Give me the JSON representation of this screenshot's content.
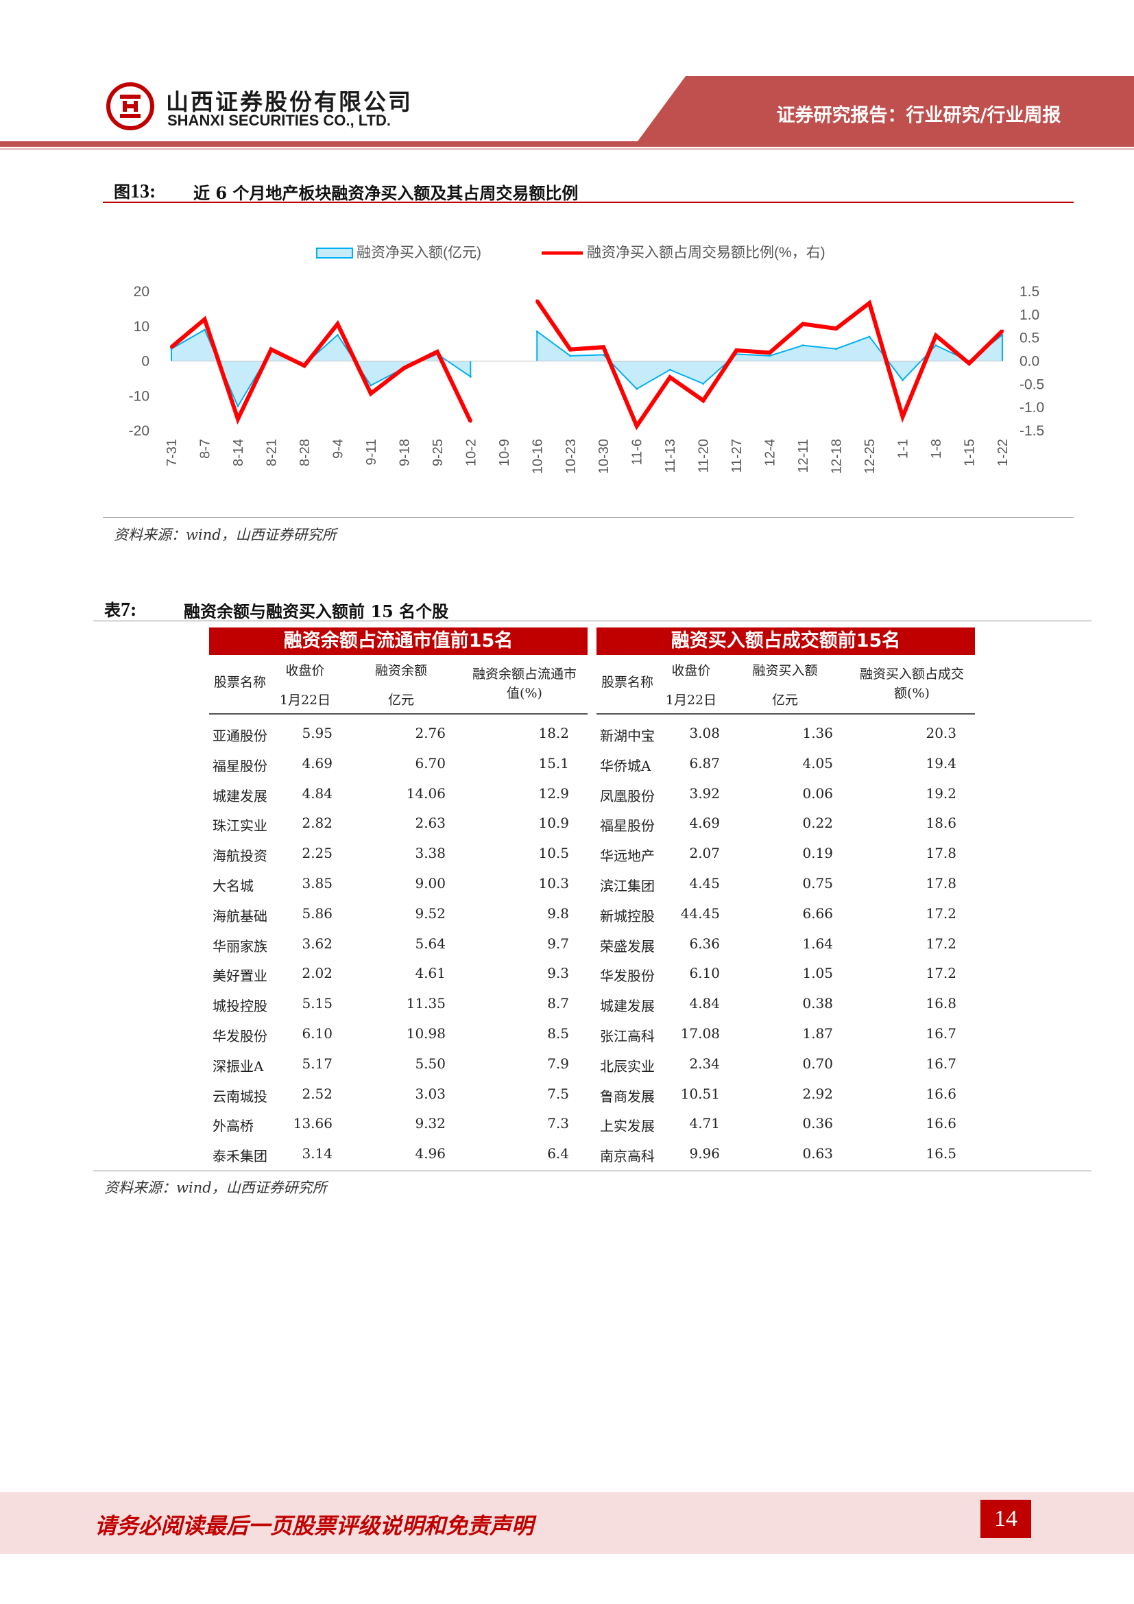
{
  "header": {
    "company_cn": "山西证券股份有限公司",
    "company_en": "SHANXI SECURITIES CO., LTD.",
    "report_type": "证券研究报告：行业研究/行业周报",
    "brand_color": "#c0504d"
  },
  "figure": {
    "caption_label": "图",
    "caption_num": "13:",
    "title": "近 6 个月地产板块融资净买入额及其占周交易额比例",
    "source": "资料来源：wind，山西证券研究所"
  },
  "chart_data": {
    "type": "area+line",
    "legend_position": "top",
    "grid": false,
    "categories": [
      "7-31",
      "8-7",
      "8-14",
      "8-21",
      "8-28",
      "9-4",
      "9-11",
      "9-18",
      "9-25",
      "10-2",
      "10-9",
      "10-16",
      "10-23",
      "10-30",
      "11-6",
      "11-13",
      "11-20",
      "11-27",
      "12-4",
      "12-11",
      "12-18",
      "12-25",
      "1-1",
      "1-8",
      "1-15",
      "1-22"
    ],
    "left_axis": {
      "ticks": [
        "20",
        "10",
        "0",
        "-10",
        "-20"
      ],
      "ylim": [
        -20,
        20
      ]
    },
    "right_axis": {
      "ticks": [
        "1.5",
        "1.0",
        "0.5",
        "0.0",
        "-0.5",
        "-1.0",
        "-1.5"
      ],
      "ylim": [
        -1.5,
        1.5
      ]
    },
    "series": [
      {
        "name": "融资净买入额(亿元)",
        "type": "area",
        "axis": "left",
        "color": "#00b0f0",
        "fill": "#c6ecfb",
        "values": [
          3.5,
          9,
          -13,
          3,
          -1,
          7.5,
          -7,
          -2,
          2,
          -4.5,
          null,
          8.5,
          1.5,
          1.8,
          -8,
          -2.5,
          -6.5,
          2,
          1.5,
          4.5,
          3.5,
          7,
          -5.5,
          4.5,
          0,
          7.5
        ]
      },
      {
        "name": "融资净买入额占周交易额比例(%，右)",
        "type": "line",
        "axis": "right",
        "color": "#ff0000",
        "values": [
          0.3,
          0.9,
          -1.25,
          0.25,
          -0.1,
          0.8,
          -0.7,
          -0.15,
          0.2,
          -1.3,
          null,
          1.3,
          0.25,
          0.3,
          -1.4,
          -0.35,
          -0.85,
          0.23,
          0.18,
          0.8,
          0.7,
          1.25,
          -1.2,
          0.55,
          -0.05,
          0.65
        ]
      }
    ]
  },
  "table": {
    "caption_label": "表",
    "caption_num": "7:",
    "title": "融资余额与融资买入额前 15 名个股",
    "left_title": "融资余额占流通市值前15名",
    "right_title": "融资买入额占成交额前15名",
    "left_headers": {
      "name": "股票名称",
      "price": "收盘价",
      "price_sub": "1月22日",
      "balance": "融资余额",
      "balance_sub": "亿元",
      "ratio": "融资余额占流通市",
      "ratio_sub": "值(%)"
    },
    "right_headers": {
      "name": "股票名称",
      "price": "收盘价",
      "price_sub": "1月22日",
      "buy": "融资买入额",
      "buy_sub": "亿元",
      "ratio": "融资买入额占成交",
      "ratio_sub": "额(%)"
    },
    "left_rows": [
      [
        "亚通股份",
        "5.95",
        "2.76",
        "18.2"
      ],
      [
        "福星股份",
        "4.69",
        "6.70",
        "15.1"
      ],
      [
        "城建发展",
        "4.84",
        "14.06",
        "12.9"
      ],
      [
        "珠江实业",
        "2.82",
        "2.63",
        "10.9"
      ],
      [
        "海航投资",
        "2.25",
        "3.38",
        "10.5"
      ],
      [
        "大名城",
        "3.85",
        "9.00",
        "10.3"
      ],
      [
        "海航基础",
        "5.86",
        "9.52",
        "9.8"
      ],
      [
        "华丽家族",
        "3.62",
        "5.64",
        "9.7"
      ],
      [
        "美好置业",
        "2.02",
        "4.61",
        "9.3"
      ],
      [
        "城投控股",
        "5.15",
        "11.35",
        "8.7"
      ],
      [
        "华发股份",
        "6.10",
        "10.98",
        "8.5"
      ],
      [
        "深振业A",
        "5.17",
        "5.50",
        "7.9"
      ],
      [
        "云南城投",
        "2.52",
        "3.03",
        "7.5"
      ],
      [
        "外高桥",
        "13.66",
        "9.32",
        "7.3"
      ],
      [
        "泰禾集团",
        "3.14",
        "4.96",
        "6.4"
      ]
    ],
    "right_rows": [
      [
        "新湖中宝",
        "3.08",
        "1.36",
        "20.3"
      ],
      [
        "华侨城A",
        "6.87",
        "4.05",
        "19.4"
      ],
      [
        "凤凰股份",
        "3.92",
        "0.06",
        "19.2"
      ],
      [
        "福星股份",
        "4.69",
        "0.22",
        "18.6"
      ],
      [
        "华远地产",
        "2.07",
        "0.19",
        "17.8"
      ],
      [
        "滨江集团",
        "4.45",
        "0.75",
        "17.8"
      ],
      [
        "新城控股",
        "44.45",
        "6.66",
        "17.2"
      ],
      [
        "荣盛发展",
        "6.36",
        "1.64",
        "17.2"
      ],
      [
        "华发股份",
        "6.10",
        "1.05",
        "17.2"
      ],
      [
        "城建发展",
        "4.84",
        "0.38",
        "16.8"
      ],
      [
        "张江高科",
        "17.08",
        "1.87",
        "16.7"
      ],
      [
        "北辰实业",
        "2.34",
        "0.70",
        "16.7"
      ],
      [
        "鲁商发展",
        "10.51",
        "2.92",
        "16.6"
      ],
      [
        "上实发展",
        "4.71",
        "0.36",
        "16.6"
      ],
      [
        "南京高科",
        "9.96",
        "0.63",
        "16.5"
      ]
    ],
    "source": "资料来源：wind，山西证券研究所"
  },
  "footer": {
    "disclaimer": "请务必阅读最后一页股票评级说明和免责声明",
    "page_number": "14"
  }
}
